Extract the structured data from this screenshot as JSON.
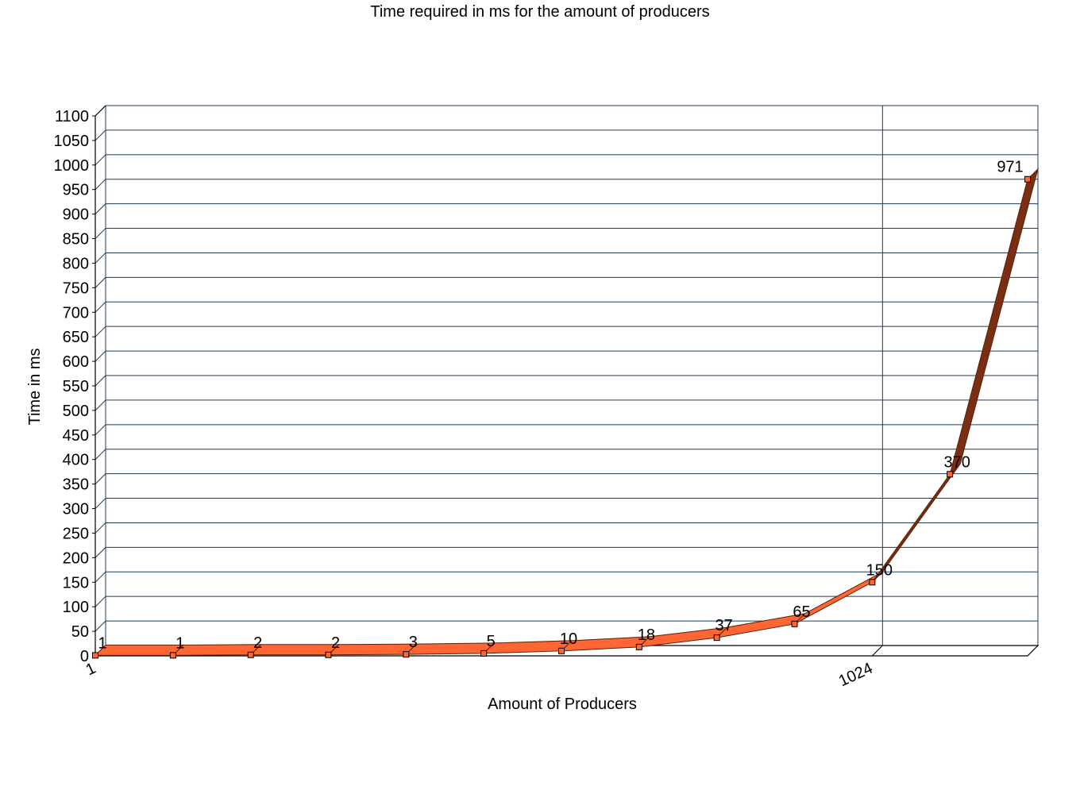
{
  "chart_data": {
    "type": "line",
    "title": "Time required in ms for the amount of producers",
    "xlabel": "Amount of Producers",
    "ylabel": "Time in ms",
    "ylim": [
      0,
      1100
    ],
    "ystep": 50,
    "x_tick_labels": [
      {
        "index": 0,
        "label": "1"
      },
      {
        "index": 10,
        "label": "1024"
      }
    ],
    "series": [
      {
        "name": "Time",
        "values": [
          1,
          1,
          2,
          2,
          3,
          5,
          10,
          18,
          37,
          65,
          150,
          370,
          971
        ]
      }
    ],
    "colors": {
      "ribbon": "#ff6633",
      "ribbon_dark": "#7a2e14",
      "marker": "#ff6633",
      "grid": "#1f3a5a",
      "axis": "#000000"
    }
  }
}
